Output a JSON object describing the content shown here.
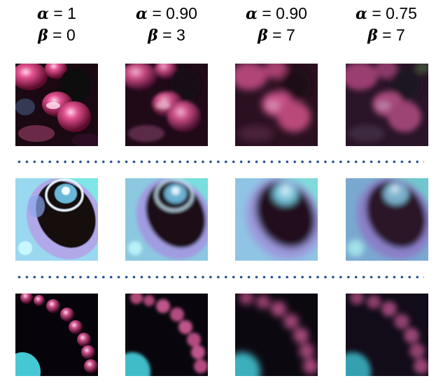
{
  "columns": [
    {
      "alpha_symbol": "α",
      "alpha_value": " = 1",
      "beta_symbol": "β",
      "beta_value": " = 0"
    },
    {
      "alpha_symbol": "α",
      "alpha_value": " = 0.90",
      "beta_symbol": "β",
      "beta_value": " = 3"
    },
    {
      "alpha_symbol": "α",
      "alpha_value": " = 0.90",
      "beta_symbol": "β",
      "beta_value": " = 7"
    },
    {
      "alpha_symbol": "α",
      "alpha_value": " = 0.75",
      "beta_symbol": "β",
      "beta_value": " = 7"
    }
  ],
  "rows": [
    {
      "name": "bead-cluster-crop"
    },
    {
      "name": "ring-crop"
    },
    {
      "name": "bead-chain-crop"
    }
  ],
  "colors": {
    "separator": "#1f4e8c",
    "magenta": "#c8326e",
    "cyan": "#7ee6e6",
    "dark": "#0a0508"
  }
}
